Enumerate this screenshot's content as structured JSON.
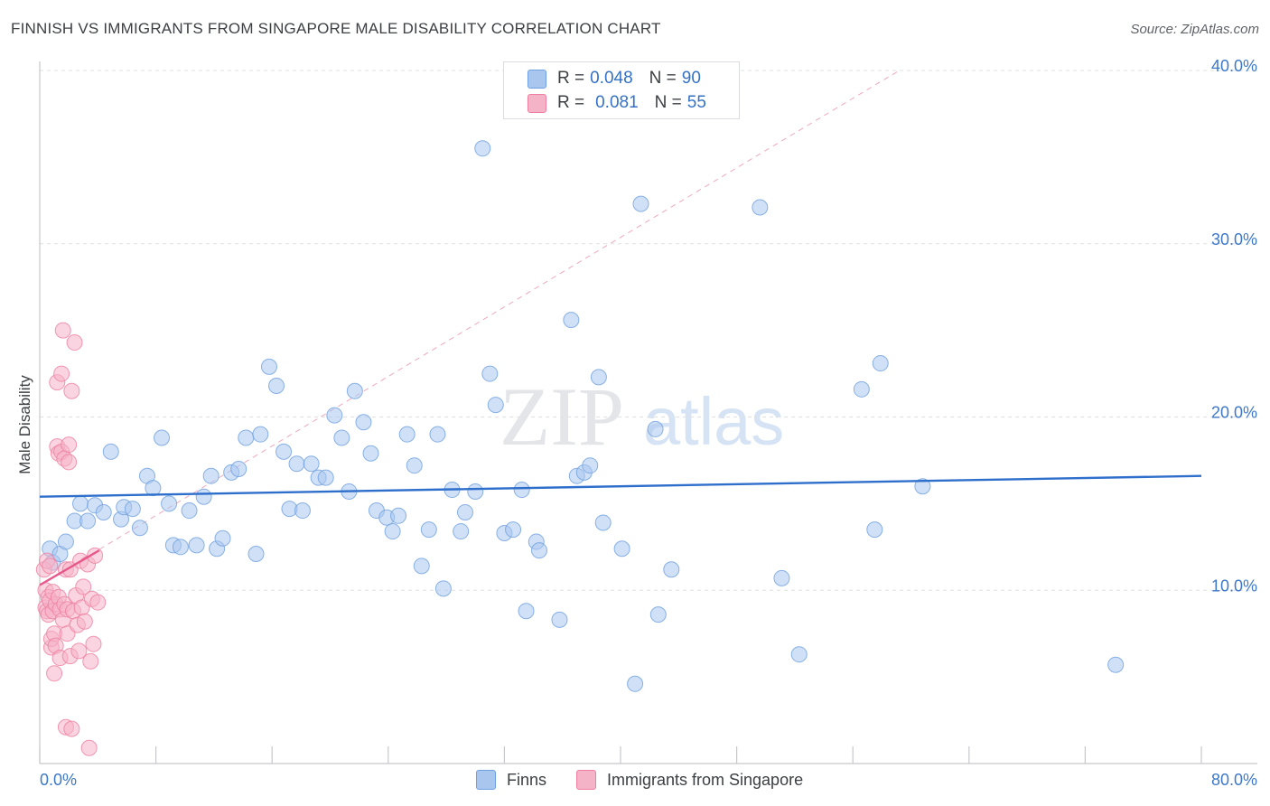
{
  "title": "FINNISH VS IMMIGRANTS FROM SINGAPORE MALE DISABILITY CORRELATION CHART",
  "source": "Source: ZipAtlas.com",
  "watermark": {
    "zip": "ZIP",
    "atlas": "atlas"
  },
  "legend_top": {
    "rows": [
      {
        "r_label": "R = ",
        "r_value": "0.048",
        "n_label": "N = ",
        "n_value": "90",
        "color": "#a9c6ee"
      },
      {
        "r_label": "R = ",
        "r_value": "0.081",
        "n_label": "N = ",
        "n_value": "55",
        "color": "#f5b3c8"
      }
    ]
  },
  "legend_bottom": [
    {
      "label": "Finns",
      "color": "#a9c6ee"
    },
    {
      "label": "Immigrants from Singapore",
      "color": "#f5b3c8"
    }
  ],
  "chart_data": {
    "type": "scatter",
    "title": "FINNISH VS IMMIGRANTS FROM SINGAPORE MALE DISABILITY CORRELATION CHART",
    "xlabel": "",
    "ylabel": "Male Disability",
    "xlim": [
      0,
      80
    ],
    "ylim": [
      0,
      40
    ],
    "x_tick_labels": [
      "0.0%",
      "80.0%"
    ],
    "y_ticks": [
      10,
      20,
      30,
      40
    ],
    "y_tick_labels": [
      "10.0%",
      "20.0%",
      "30.0%",
      "40.0%"
    ],
    "grid": true,
    "series": [
      {
        "name": "Finns",
        "color": "#6fa0e0",
        "fill": "#a9c6ee",
        "R": 0.048,
        "N": 90,
        "trend": {
          "x": [
            0,
            80
          ],
          "y": [
            15.4,
            16.6
          ]
        },
        "points": [
          [
            0.7,
            12.4
          ],
          [
            0.9,
            11.6
          ],
          [
            1.4,
            12.1
          ],
          [
            1.8,
            12.8
          ],
          [
            2.4,
            14.0
          ],
          [
            2.8,
            15.0
          ],
          [
            3.3,
            14.0
          ],
          [
            3.8,
            14.9
          ],
          [
            4.4,
            14.5
          ],
          [
            4.9,
            18.0
          ],
          [
            5.6,
            14.1
          ],
          [
            5.8,
            14.8
          ],
          [
            6.4,
            14.7
          ],
          [
            6.9,
            13.6
          ],
          [
            7.4,
            16.6
          ],
          [
            7.8,
            15.9
          ],
          [
            8.4,
            18.8
          ],
          [
            8.9,
            15.0
          ],
          [
            9.2,
            12.6
          ],
          [
            9.7,
            12.5
          ],
          [
            10.3,
            14.6
          ],
          [
            10.8,
            12.6
          ],
          [
            11.3,
            15.4
          ],
          [
            11.8,
            16.6
          ],
          [
            12.2,
            12.4
          ],
          [
            12.6,
            13.0
          ],
          [
            13.2,
            16.8
          ],
          [
            13.7,
            17.0
          ],
          [
            14.2,
            18.8
          ],
          [
            14.9,
            12.1
          ],
          [
            15.2,
            19.0
          ],
          [
            15.8,
            22.9
          ],
          [
            16.3,
            21.8
          ],
          [
            16.8,
            18.0
          ],
          [
            17.2,
            14.7
          ],
          [
            17.7,
            17.3
          ],
          [
            18.1,
            14.6
          ],
          [
            18.7,
            17.3
          ],
          [
            19.2,
            16.5
          ],
          [
            19.7,
            16.5
          ],
          [
            20.3,
            20.1
          ],
          [
            20.8,
            18.8
          ],
          [
            21.3,
            15.7
          ],
          [
            21.7,
            21.5
          ],
          [
            22.3,
            19.7
          ],
          [
            22.8,
            17.9
          ],
          [
            23.2,
            14.6
          ],
          [
            23.9,
            14.2
          ],
          [
            24.3,
            13.4
          ],
          [
            24.7,
            14.3
          ],
          [
            25.3,
            19.0
          ],
          [
            25.8,
            17.2
          ],
          [
            26.3,
            11.4
          ],
          [
            26.8,
            13.5
          ],
          [
            27.4,
            19.0
          ],
          [
            27.8,
            10.1
          ],
          [
            28.4,
            15.8
          ],
          [
            29.0,
            13.4
          ],
          [
            29.3,
            14.5
          ],
          [
            30.0,
            15.7
          ],
          [
            30.5,
            35.5
          ],
          [
            31.0,
            22.5
          ],
          [
            31.4,
            20.7
          ],
          [
            32.0,
            13.3
          ],
          [
            32.6,
            13.5
          ],
          [
            33.2,
            15.8
          ],
          [
            33.5,
            8.8
          ],
          [
            34.2,
            12.8
          ],
          [
            34.4,
            12.3
          ],
          [
            35.8,
            8.3
          ],
          [
            36.6,
            25.6
          ],
          [
            37.0,
            16.6
          ],
          [
            37.5,
            16.8
          ],
          [
            37.9,
            17.2
          ],
          [
            38.5,
            22.3
          ],
          [
            38.8,
            13.9
          ],
          [
            40.1,
            12.4
          ],
          [
            41.0,
            4.6
          ],
          [
            41.4,
            32.3
          ],
          [
            42.4,
            19.3
          ],
          [
            42.6,
            8.6
          ],
          [
            43.5,
            11.2
          ],
          [
            49.6,
            32.1
          ],
          [
            51.1,
            10.7
          ],
          [
            52.3,
            6.3
          ],
          [
            56.6,
            21.6
          ],
          [
            57.5,
            13.5
          ],
          [
            57.9,
            23.1
          ],
          [
            60.8,
            16.0
          ],
          [
            74.1,
            5.7
          ]
        ]
      },
      {
        "name": "Immigrants from Singapore",
        "color": "#ee7fa0",
        "fill": "#f5b3c8",
        "R": 0.081,
        "N": 55,
        "trend": {
          "x": [
            0,
            4.1
          ],
          "y": [
            10.3,
            12.3
          ]
        },
        "points": [
          [
            0.3,
            11.2
          ],
          [
            0.4,
            10.0
          ],
          [
            0.4,
            9.0
          ],
          [
            0.5,
            11.7
          ],
          [
            0.5,
            8.8
          ],
          [
            0.6,
            9.6
          ],
          [
            0.6,
            8.6
          ],
          [
            0.7,
            11.4
          ],
          [
            0.7,
            9.4
          ],
          [
            0.8,
            6.7
          ],
          [
            0.8,
            7.2
          ],
          [
            0.9,
            9.9
          ],
          [
            0.9,
            8.8
          ],
          [
            1.0,
            7.5
          ],
          [
            1.0,
            5.2
          ],
          [
            1.1,
            9.2
          ],
          [
            1.1,
            6.8
          ],
          [
            1.2,
            18.3
          ],
          [
            1.2,
            22.0
          ],
          [
            1.3,
            17.9
          ],
          [
            1.3,
            9.6
          ],
          [
            1.4,
            8.9
          ],
          [
            1.4,
            6.1
          ],
          [
            1.5,
            18.0
          ],
          [
            1.5,
            22.5
          ],
          [
            1.6,
            8.3
          ],
          [
            1.6,
            25.0
          ],
          [
            1.7,
            17.6
          ],
          [
            1.7,
            9.2
          ],
          [
            1.8,
            2.1
          ],
          [
            1.8,
            11.2
          ],
          [
            1.9,
            8.9
          ],
          [
            1.9,
            7.5
          ],
          [
            2.0,
            18.4
          ],
          [
            2.0,
            17.4
          ],
          [
            2.1,
            11.2
          ],
          [
            2.1,
            6.2
          ],
          [
            2.2,
            21.5
          ],
          [
            2.2,
            2.0
          ],
          [
            2.3,
            8.8
          ],
          [
            2.4,
            24.3
          ],
          [
            2.5,
            9.7
          ],
          [
            2.6,
            8.0
          ],
          [
            2.7,
            6.5
          ],
          [
            2.8,
            11.7
          ],
          [
            2.9,
            9.0
          ],
          [
            3.0,
            10.2
          ],
          [
            3.1,
            8.2
          ],
          [
            3.3,
            11.5
          ],
          [
            3.4,
            0.9
          ],
          [
            3.5,
            5.9
          ],
          [
            3.6,
            9.5
          ],
          [
            3.7,
            6.9
          ],
          [
            3.8,
            12.0
          ],
          [
            4.0,
            9.3
          ]
        ]
      }
    ],
    "reference_line": {
      "style": "dashed",
      "color": "#f0a8bf",
      "x": [
        0,
        59.2
      ],
      "y": [
        10.3,
        40.0
      ]
    }
  }
}
